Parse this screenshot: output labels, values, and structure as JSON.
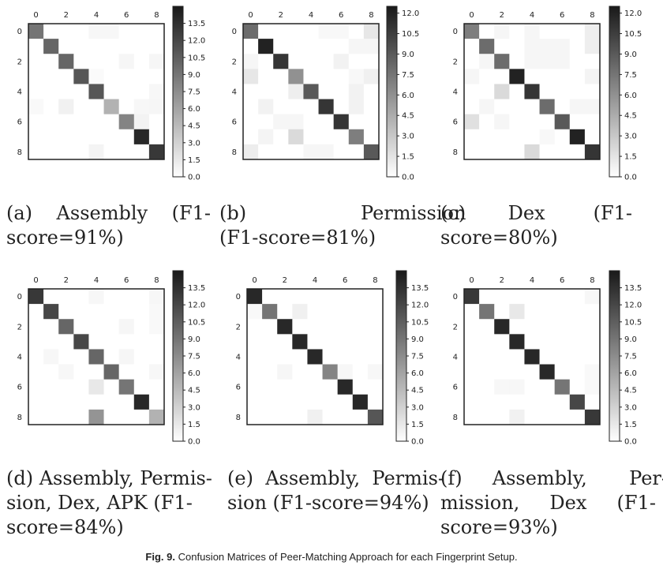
{
  "figure": {
    "label": "Fig. 9.",
    "caption": "Confusion Matrices of Peer-Matching Approach for each Fingerprint Setup."
  },
  "chart_data": [
    {
      "type": "heatmap",
      "panel": "a",
      "caption_lines": [
        "(a)    Assembly    (F1-",
        "score=91%)"
      ],
      "x_ticks": [
        "0",
        "2",
        "4",
        "6",
        "8"
      ],
      "y_ticks": [
        "0",
        "2",
        "4",
        "6",
        "8"
      ],
      "colorbar_ticks": [
        "13.5",
        "12.0",
        "10.5",
        "9.0",
        "7.5",
        "6.0",
        "4.5",
        "3.0",
        "1.5",
        "0.0"
      ],
      "vmin": 0,
      "vmax": 15,
      "matrix": [
        [
          9,
          0,
          0,
          0,
          0.5,
          0.5,
          0,
          0,
          0
        ],
        [
          0,
          10,
          0,
          0,
          0,
          0,
          0,
          0,
          0
        ],
        [
          0,
          0,
          10,
          0,
          0,
          0,
          0.6,
          0,
          0.6
        ],
        [
          0,
          0,
          0,
          11,
          0.3,
          0,
          0,
          0,
          0
        ],
        [
          0,
          0,
          0,
          0,
          11,
          0,
          0,
          0,
          0.5
        ],
        [
          0.4,
          0,
          0.9,
          0,
          0,
          5,
          0,
          0.5,
          0.6
        ],
        [
          0,
          0,
          0,
          0,
          0,
          0,
          8,
          0.8,
          0
        ],
        [
          0,
          0,
          0,
          0,
          0,
          0,
          0,
          14,
          0
        ],
        [
          0,
          0,
          0,
          0,
          0.7,
          0,
          0,
          0,
          13
        ]
      ]
    },
    {
      "type": "heatmap",
      "panel": "b",
      "caption_lines": [
        "(b)                   Permission",
        "(F1-score=81%)"
      ],
      "x_ticks": [
        "0",
        "2",
        "4",
        "6",
        "8"
      ],
      "y_ticks": [
        "0",
        "2",
        "4",
        "6",
        "8"
      ],
      "colorbar_ticks": [
        "12.0",
        "10.5",
        "9.0",
        "7.5",
        "6.0",
        "4.5",
        "3.0",
        "1.5",
        "0.0"
      ],
      "vmin": 0,
      "vmax": 12.5,
      "matrix": [
        [
          8,
          0,
          0,
          0,
          0,
          0.4,
          0.4,
          0,
          1.3
        ],
        [
          0,
          12,
          0,
          0,
          0,
          0,
          0,
          0.5,
          0.5
        ],
        [
          0.5,
          0,
          11,
          0,
          0,
          0,
          0.7,
          0,
          0
        ],
        [
          1.3,
          0,
          0,
          6,
          0,
          0,
          0,
          0.4,
          0.8
        ],
        [
          0,
          0,
          0,
          0.9,
          9,
          0,
          0,
          0.7,
          0
        ],
        [
          0,
          0.7,
          0,
          0,
          0,
          11,
          0,
          0.7,
          0
        ],
        [
          0,
          0,
          0.5,
          0.5,
          0,
          0,
          11,
          0,
          0
        ],
        [
          0,
          0.6,
          0,
          2,
          0,
          0,
          0,
          7,
          0
        ],
        [
          1,
          0,
          0,
          0,
          0.5,
          0.5,
          0,
          0,
          9
        ]
      ]
    },
    {
      "type": "heatmap",
      "panel": "c",
      "caption_lines": [
        "(c)       Dex        (F1-",
        "score=80%)"
      ],
      "x_ticks": [
        "0",
        "2",
        "4",
        "6",
        "8"
      ],
      "y_ticks": [
        "0",
        "2",
        "4",
        "6",
        "8"
      ],
      "colorbar_ticks": [
        "12.0",
        "10.5",
        "9.0",
        "7.5",
        "6.0",
        "4.5",
        "3.0",
        "1.5",
        "0.0"
      ],
      "vmin": 0,
      "vmax": 12.5,
      "matrix": [
        [
          7,
          0,
          0.5,
          0,
          0.5,
          0,
          0,
          0,
          0.9
        ],
        [
          0,
          8,
          0,
          0,
          0.5,
          0.5,
          0.5,
          0,
          0.9
        ],
        [
          0,
          0.5,
          8,
          0,
          0.5,
          0.5,
          0.5,
          0,
          0
        ],
        [
          0.5,
          0,
          0,
          12,
          0,
          0,
          0,
          0,
          0.6
        ],
        [
          0,
          0,
          2,
          0,
          11,
          0,
          0,
          0,
          0
        ],
        [
          0,
          0.5,
          0,
          0,
          0,
          8,
          0,
          0.5,
          0.5
        ],
        [
          1.7,
          0,
          0.5,
          0,
          0,
          0,
          9,
          0,
          0
        ],
        [
          0,
          0,
          0,
          0,
          0,
          0.4,
          0,
          12,
          0
        ],
        [
          0,
          0,
          0,
          0,
          2,
          0,
          0,
          0,
          11
        ]
      ]
    },
    {
      "type": "heatmap",
      "panel": "d",
      "caption_lines": [
        "(d) Assembly, Permis-",
        "sion, Dex, APK (F1-",
        "score=84%)"
      ],
      "x_ticks": [
        "0",
        "2",
        "4",
        "6",
        "8"
      ],
      "y_ticks": [
        "0",
        "2",
        "4",
        "6",
        "8"
      ],
      "colorbar_ticks": [
        "13.5",
        "12.0",
        "10.5",
        "9.0",
        "7.5",
        "6.0",
        "4.5",
        "3.0",
        "1.5",
        "0.0"
      ],
      "vmin": 0,
      "vmax": 15,
      "matrix": [
        [
          13,
          0,
          0,
          0,
          0.5,
          0,
          0,
          0,
          0.5
        ],
        [
          0,
          12,
          0,
          0,
          0,
          0,
          0,
          0,
          0.4
        ],
        [
          0,
          0,
          10,
          0,
          0,
          0,
          0.6,
          0,
          0.4
        ],
        [
          0,
          0,
          0,
          12,
          0,
          0,
          0,
          0,
          0
        ],
        [
          0,
          0.5,
          0,
          0,
          10,
          0,
          0.6,
          0,
          0
        ],
        [
          0,
          0,
          0.5,
          0,
          0,
          10,
          0,
          0,
          0.5
        ],
        [
          0,
          0,
          0,
          0,
          1.5,
          0,
          9,
          0,
          0
        ],
        [
          0,
          0,
          0,
          0,
          0,
          0,
          0,
          14,
          0
        ],
        [
          0,
          0,
          0,
          0,
          7,
          0,
          0,
          0,
          5
        ]
      ]
    },
    {
      "type": "heatmap",
      "panel": "e",
      "caption_lines": [
        "(e)  Assembly,  Permis-",
        "sion (F1-score=94%)"
      ],
      "x_ticks": [
        "0",
        "2",
        "4",
        "6",
        "8"
      ],
      "y_ticks": [
        "0",
        "2",
        "4",
        "6",
        "8"
      ],
      "colorbar_ticks": [
        "13.5",
        "12.0",
        "10.5",
        "9.0",
        "7.5",
        "6.0",
        "4.5",
        "3.0",
        "1.5",
        "0.0"
      ],
      "vmin": 0,
      "vmax": 15,
      "matrix": [
        [
          14,
          0,
          0,
          0,
          0,
          0,
          0,
          0,
          0
        ],
        [
          0.4,
          9,
          0,
          1,
          0,
          0,
          0,
          0,
          0
        ],
        [
          0,
          0,
          14,
          0,
          0,
          0,
          0,
          0,
          0
        ],
        [
          0,
          0,
          0,
          14,
          0,
          0,
          0,
          0,
          0
        ],
        [
          0,
          0,
          0,
          0,
          14,
          0,
          0,
          0,
          0
        ],
        [
          0,
          0,
          0.6,
          0,
          0,
          8,
          0.5,
          0,
          0.5
        ],
        [
          0,
          0,
          0,
          0,
          0,
          0,
          14,
          0,
          0
        ],
        [
          0,
          0,
          0,
          0,
          0,
          0,
          0,
          14,
          0
        ],
        [
          0,
          0,
          0,
          0,
          1,
          0,
          0,
          0,
          11
        ]
      ]
    },
    {
      "type": "heatmap",
      "panel": "f",
      "caption_lines": [
        "(f)     Assembly,       Per-",
        "mission,     Dex     (F1-",
        "score=93%)"
      ],
      "x_ticks": [
        "0",
        "2",
        "4",
        "6",
        "8"
      ],
      "y_ticks": [
        "0",
        "2",
        "4",
        "6",
        "8"
      ],
      "colorbar_ticks": [
        "13.5",
        "12.0",
        "10.5",
        "9.0",
        "7.5",
        "6.0",
        "4.5",
        "3.0",
        "1.5",
        "0.0"
      ],
      "vmin": 0,
      "vmax": 15,
      "matrix": [
        [
          13,
          0,
          0,
          0,
          0,
          0,
          0,
          0,
          0.5
        ],
        [
          0,
          9,
          0,
          1.5,
          0,
          0,
          0,
          0,
          0
        ],
        [
          0,
          0,
          14,
          0,
          0,
          0,
          0,
          0,
          0
        ],
        [
          0,
          0,
          0,
          14,
          0,
          0,
          0,
          0,
          0
        ],
        [
          0,
          0,
          0,
          0,
          14,
          0,
          0,
          0,
          0
        ],
        [
          0,
          0,
          0,
          0,
          0,
          14,
          0,
          0,
          0.4
        ],
        [
          0,
          0,
          0.5,
          0.5,
          0,
          0,
          9,
          0,
          0.4
        ],
        [
          0,
          0,
          0,
          0,
          0,
          0,
          0,
          12,
          0
        ],
        [
          0,
          0,
          0,
          0.9,
          0,
          0,
          0,
          0,
          13
        ]
      ]
    }
  ]
}
